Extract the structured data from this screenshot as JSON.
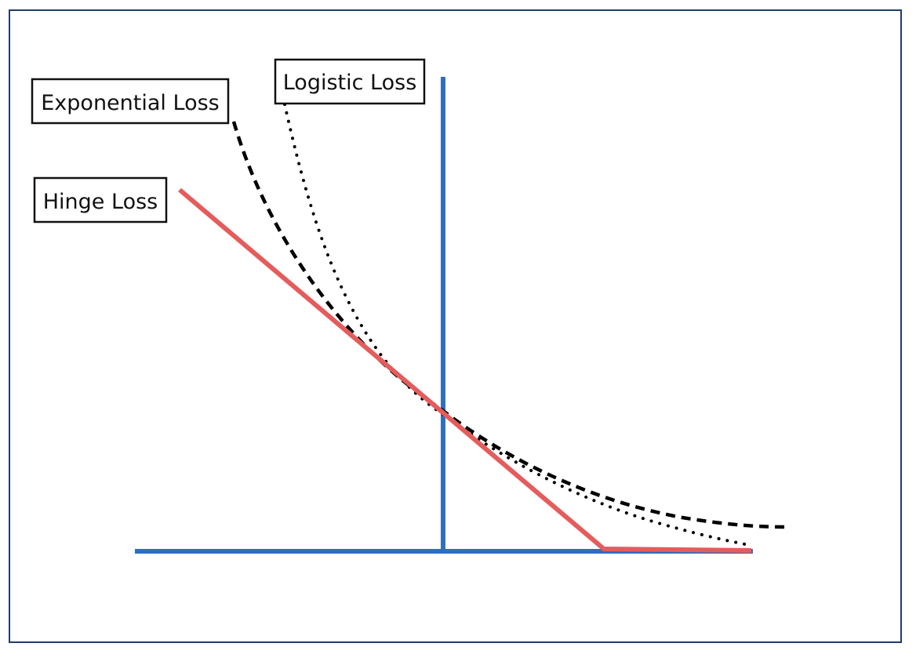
{
  "labels": {
    "exponential": "Exponential Loss",
    "logistic": "Logistic Loss",
    "hinge": "Hinge Loss"
  },
  "colors": {
    "axis": "#2f6fc0",
    "hinge": "#e45c5c",
    "curves": "#000000",
    "frame": "#1f3d6b"
  }
}
